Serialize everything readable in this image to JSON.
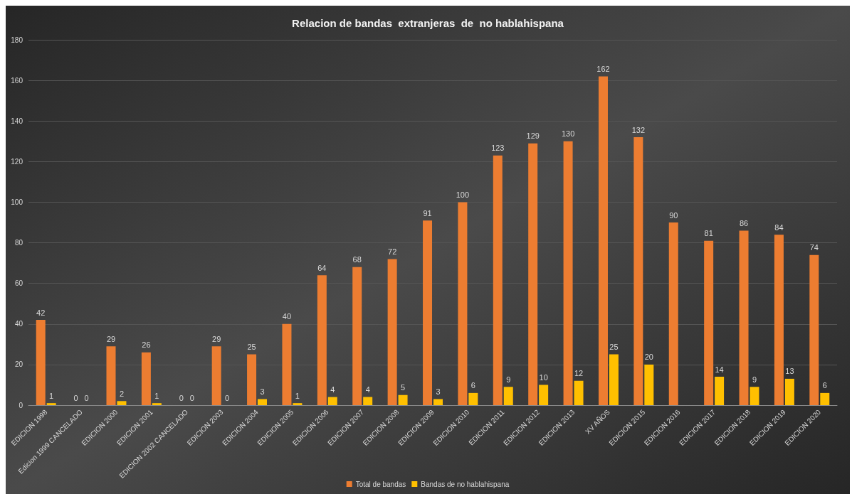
{
  "chart_data": {
    "type": "bar",
    "title": "Relacion de bandas  extranjeras  de  no hablahispana",
    "categories": [
      "EDICION 1998",
      "Edicion 1999 CANCELADO",
      "EDICION 2000",
      "EDICION 2001",
      "EDICION 2002 CANCELADO",
      "EDICION 2003",
      "EDICION 2004",
      "EDICION 2005",
      "EDICION 2006",
      "EDICION 2007",
      "EDICION 2008",
      "EDICION 2009",
      "EDICION 2010",
      "EDICION 2011",
      "EDICION 2012",
      "EDICION 2013",
      "XV AÑOS",
      "EDICION 2015",
      "EDICION 2016",
      "EDICION 2017",
      "EDICION 2018",
      "EDICION 2019",
      "EDICION 2020"
    ],
    "series": [
      {
        "name": "Total de bandas",
        "color": "#ed7d31",
        "values": [
          42,
          0,
          29,
          26,
          0,
          29,
          25,
          40,
          64,
          68,
          72,
          91,
          100,
          123,
          129,
          130,
          162,
          132,
          90,
          81,
          86,
          84,
          74
        ]
      },
      {
        "name": "Bandas de no hablahispana",
        "color": "#ffc000",
        "values": [
          1,
          0,
          2,
          1,
          0,
          0,
          3,
          1,
          4,
          4,
          5,
          3,
          6,
          9,
          10,
          12,
          25,
          20,
          null,
          14,
          9,
          13,
          6
        ]
      }
    ],
    "ylim": [
      0,
      180
    ],
    "yticks": [
      0,
      20,
      40,
      60,
      80,
      100,
      120,
      140,
      160,
      180
    ],
    "grid": "y",
    "legend": "bottom",
    "data_labels": true
  }
}
